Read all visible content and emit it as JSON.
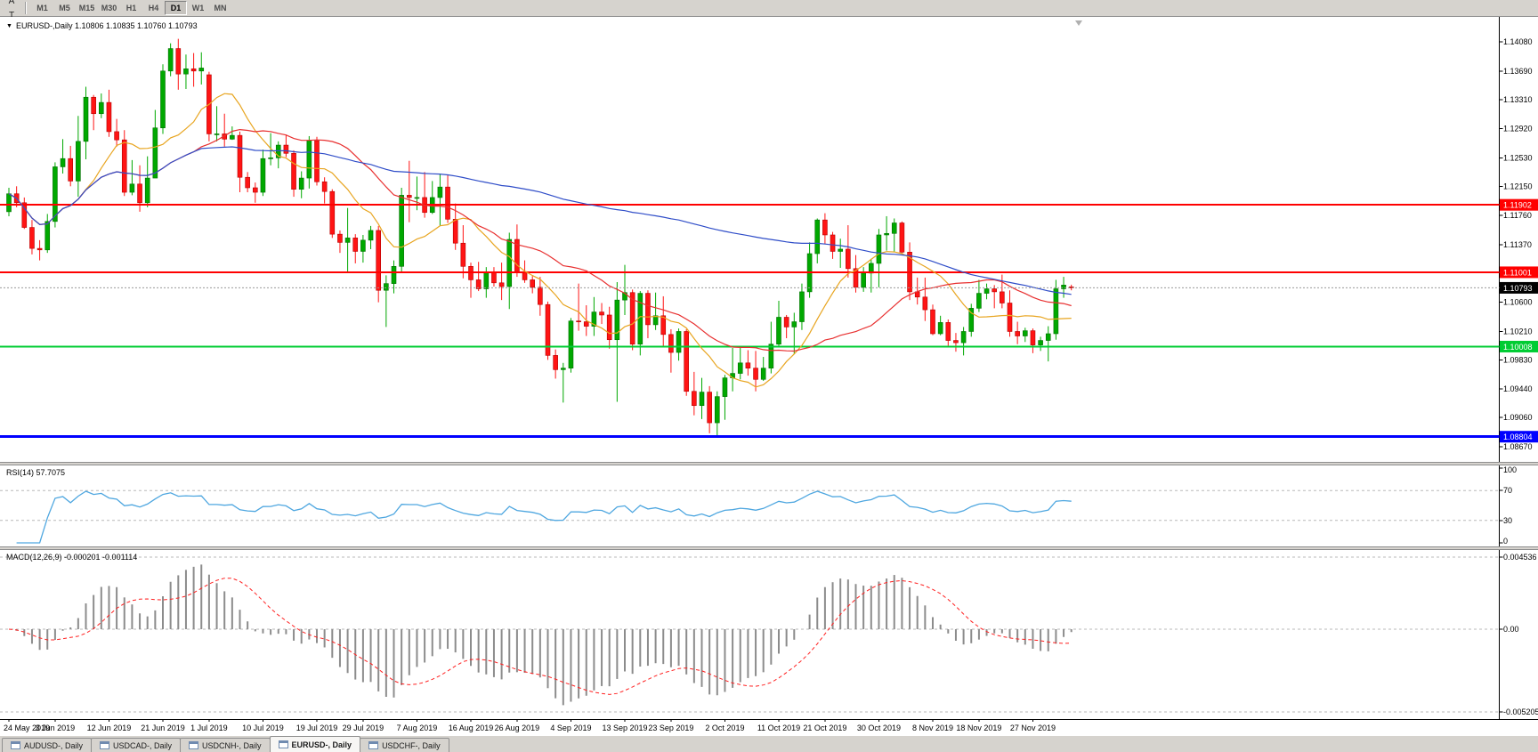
{
  "toolbar": {
    "tools": [
      {
        "name": "cursor-tool",
        "glyph": "↖"
      },
      {
        "name": "text-label-tool",
        "glyph": "A"
      },
      {
        "name": "type-tool",
        "glyph": "T"
      },
      {
        "name": "drawing-tools-dropdown",
        "glyph": "~",
        "dropdown": "▾"
      }
    ],
    "timeframes": [
      {
        "label": "M1"
      },
      {
        "label": "M5"
      },
      {
        "label": "M15"
      },
      {
        "label": "M30"
      },
      {
        "label": "H1"
      },
      {
        "label": "H4"
      },
      {
        "label": "D1",
        "active": true
      },
      {
        "label": "W1"
      },
      {
        "label": "MN"
      }
    ]
  },
  "chart": {
    "menu_icon": "▼",
    "title_line": "EURUSD-,Daily 1.10806 1.10835 1.10760 1.10793"
  },
  "chart_data": {
    "type": "candlestick",
    "symbol": "EURUSD-",
    "timeframe": "Daily",
    "ohlc_display": {
      "open": "1.10806",
      "high": "1.10835",
      "low": "1.10760",
      "close": "1.10793"
    },
    "y_axis": {
      "ticks": [
        "1.14080",
        "1.13690",
        "1.13310",
        "1.12920",
        "1.12530",
        "1.12150",
        "1.11760",
        "1.11370",
        "1.10600",
        "1.10210",
        "1.09830",
        "1.09440",
        "1.09060",
        "1.08670"
      ]
    },
    "x_labels": [
      {
        "i": 0,
        "label": "24 May 2019"
      },
      {
        "i": 6,
        "label": "3 Jun 2019"
      },
      {
        "i": 13,
        "label": "12 Jun 2019"
      },
      {
        "i": 20,
        "label": "21 Jun 2019"
      },
      {
        "i": 26,
        "label": "1 Jul 2019"
      },
      {
        "i": 33,
        "label": "10 Jul 2019"
      },
      {
        "i": 40,
        "label": "19 Jul 2019"
      },
      {
        "i": 46,
        "label": "29 Jul 2019"
      },
      {
        "i": 53,
        "label": "7 Aug 2019"
      },
      {
        "i": 60,
        "label": "16 Aug 2019"
      },
      {
        "i": 66,
        "label": "26 Aug 2019"
      },
      {
        "i": 73,
        "label": "4 Sep 2019"
      },
      {
        "i": 80,
        "label": "13 Sep 2019"
      },
      {
        "i": 86,
        "label": "23 Sep 2019"
      },
      {
        "i": 93,
        "label": "2 Oct 2019"
      },
      {
        "i": 100,
        "label": "11 Oct 2019"
      },
      {
        "i": 106,
        "label": "21 Oct 2019"
      },
      {
        "i": 113,
        "label": "30 Oct 2019"
      },
      {
        "i": 120,
        "label": "8 Nov 2019"
      },
      {
        "i": 126,
        "label": "18 Nov 2019"
      },
      {
        "i": 133,
        "label": "27 Nov 2019"
      }
    ],
    "levels": [
      {
        "name": "resistance-line-upper",
        "value": 1.11902,
        "label": "1.11902",
        "color": "#FF0000",
        "width": 2
      },
      {
        "name": "resistance-line-lower",
        "value": 1.11001,
        "label": "1.11001",
        "color": "#FF0000",
        "width": 2
      },
      {
        "name": "support-line-green",
        "value": 1.10008,
        "label": "1.10008",
        "color": "#00CC33",
        "width": 2
      },
      {
        "name": "support-line-blue",
        "value": 1.08804,
        "label": "1.08804",
        "color": "#0000FF",
        "width": 3
      }
    ],
    "current_price": {
      "value": 1.10793,
      "label": "1.10793",
      "bg": "#000000"
    },
    "moving_averages": [
      {
        "period": 10,
        "color": "#E8A520"
      },
      {
        "period": 25,
        "color": "#E83030"
      },
      {
        "period": 100,
        "color": "#2F4DC8"
      }
    ],
    "colors": {
      "up": "#00A800",
      "up_edge": "#007000",
      "down": "#FF1414",
      "down_edge": "#B40000",
      "background": "#FFFFFF"
    },
    "candles": [
      [
        1.1181,
        1.1213,
        1.1175,
        1.1205
      ],
      [
        1.1205,
        1.1215,
        1.1187,
        1.1193
      ],
      [
        1.1193,
        1.12,
        1.1158,
        1.116
      ],
      [
        1.116,
        1.117,
        1.1124,
        1.1132
      ],
      [
        1.1132,
        1.1143,
        1.1116,
        1.113
      ],
      [
        1.113,
        1.1178,
        1.1126,
        1.1168
      ],
      [
        1.1168,
        1.1247,
        1.116,
        1.1241
      ],
      [
        1.1241,
        1.1278,
        1.1232,
        1.1252
      ],
      [
        1.1252,
        1.1269,
        1.1215,
        1.1222
      ],
      [
        1.1222,
        1.1309,
        1.1201,
        1.1275
      ],
      [
        1.1275,
        1.1348,
        1.1251,
        1.1334
      ],
      [
        1.1334,
        1.1337,
        1.129,
        1.1312
      ],
      [
        1.1312,
        1.1339,
        1.1306,
        1.1327
      ],
      [
        1.1327,
        1.1344,
        1.1281,
        1.1288
      ],
      [
        1.1288,
        1.1305,
        1.1268,
        1.1277
      ],
      [
        1.1277,
        1.129,
        1.1202,
        1.1207
      ],
      [
        1.1207,
        1.125,
        1.1203,
        1.1218
      ],
      [
        1.1218,
        1.1243,
        1.1181,
        1.1193
      ],
      [
        1.1193,
        1.1255,
        1.1187,
        1.1226
      ],
      [
        1.1226,
        1.1317,
        1.1226,
        1.1293
      ],
      [
        1.1293,
        1.1378,
        1.1285,
        1.1369
      ],
      [
        1.1369,
        1.1406,
        1.1362,
        1.1399
      ],
      [
        1.1399,
        1.1412,
        1.1344,
        1.1365
      ],
      [
        1.1365,
        1.1391,
        1.1345,
        1.1372
      ],
      [
        1.1372,
        1.1393,
        1.1348,
        1.1369
      ],
      [
        1.1369,
        1.1394,
        1.1351,
        1.1373
      ],
      [
        1.1364,
        1.1368,
        1.1275,
        1.1285
      ],
      [
        1.1285,
        1.1322,
        1.1275,
        1.1285
      ],
      [
        1.1285,
        1.1312,
        1.1268,
        1.1278
      ],
      [
        1.1278,
        1.1295,
        1.1277,
        1.1283
      ],
      [
        1.1283,
        1.1288,
        1.1207,
        1.1227
      ],
      [
        1.1227,
        1.1234,
        1.1207,
        1.1213
      ],
      [
        1.1213,
        1.122,
        1.1193,
        1.1207
      ],
      [
        1.1207,
        1.1264,
        1.1202,
        1.1252
      ],
      [
        1.1252,
        1.1286,
        1.1243,
        1.1253
      ],
      [
        1.1253,
        1.1275,
        1.1239,
        1.127
      ],
      [
        1.127,
        1.1284,
        1.1254,
        1.1259
      ],
      [
        1.1259,
        1.1263,
        1.1201,
        1.1211
      ],
      [
        1.1211,
        1.1235,
        1.1199,
        1.1226
      ],
      [
        1.1226,
        1.1282,
        1.1212,
        1.1276
      ],
      [
        1.1276,
        1.1281,
        1.1216,
        1.1221
      ],
      [
        1.1221,
        1.1227,
        1.1192,
        1.1208
      ],
      [
        1.1208,
        1.1211,
        1.1146,
        1.1151
      ],
      [
        1.1151,
        1.1156,
        1.1126,
        1.114
      ],
      [
        1.114,
        1.1186,
        1.1101,
        1.1146
      ],
      [
        1.1146,
        1.1151,
        1.1112,
        1.1128
      ],
      [
        1.1128,
        1.115,
        1.1113,
        1.1143
      ],
      [
        1.1143,
        1.1162,
        1.1131,
        1.1156
      ],
      [
        1.1156,
        1.1162,
        1.106,
        1.1076
      ],
      [
        1.1076,
        1.1096,
        1.1027,
        1.1085
      ],
      [
        1.1085,
        1.1116,
        1.1072,
        1.1108
      ],
      [
        1.1108,
        1.1213,
        1.1101,
        1.1203
      ],
      [
        1.1203,
        1.1249,
        1.1167,
        1.12
      ],
      [
        1.12,
        1.1228,
        1.1183,
        1.12
      ],
      [
        1.12,
        1.1234,
        1.1173,
        1.118
      ],
      [
        1.118,
        1.1222,
        1.1178,
        1.12
      ],
      [
        1.12,
        1.1231,
        1.1162,
        1.1214
      ],
      [
        1.1214,
        1.123,
        1.1166,
        1.1171
      ],
      [
        1.1171,
        1.1192,
        1.113,
        1.1139
      ],
      [
        1.1139,
        1.1163,
        1.1092,
        1.1108
      ],
      [
        1.1108,
        1.1113,
        1.1066,
        1.109
      ],
      [
        1.109,
        1.1114,
        1.1075,
        1.1078
      ],
      [
        1.1078,
        1.1107,
        1.1066,
        1.11
      ],
      [
        1.11,
        1.1107,
        1.1081,
        1.1086
      ],
      [
        1.1086,
        1.1113,
        1.1063,
        1.1081
      ],
      [
        1.1081,
        1.1153,
        1.1051,
        1.1144
      ],
      [
        1.1144,
        1.1164,
        1.1094,
        1.1101
      ],
      [
        1.1101,
        1.1116,
        1.1086,
        1.109
      ],
      [
        1.109,
        1.1095,
        1.1072,
        1.108
      ],
      [
        1.108,
        1.1094,
        1.1042,
        1.1057
      ],
      [
        1.1057,
        1.1061,
        1.0983,
        1.0989
      ],
      [
        1.0989,
        1.0997,
        1.0958,
        1.097
      ],
      [
        1.097,
        1.0979,
        1.0926,
        1.0972
      ],
      [
        1.0972,
        1.1039,
        1.0966,
        1.1035
      ],
      [
        1.1035,
        1.1085,
        1.1022,
        1.1034
      ],
      [
        1.1034,
        1.1056,
        1.1015,
        1.1028
      ],
      [
        1.1028,
        1.1067,
        1.1015,
        1.1047
      ],
      [
        1.1047,
        1.1059,
        1.1031,
        1.1043
      ],
      [
        1.1043,
        1.1054,
        1.0998,
        1.101
      ],
      [
        1.101,
        1.1087,
        1.0927,
        1.1063
      ],
      [
        1.1063,
        1.111,
        1.1043,
        1.1073
      ],
      [
        1.1073,
        1.1077,
        1.0996,
        1.1004
      ],
      [
        1.1004,
        1.1075,
        1.0989,
        1.1072
      ],
      [
        1.1072,
        1.1076,
        1.1012,
        1.103
      ],
      [
        1.103,
        1.1073,
        1.1023,
        1.1042
      ],
      [
        1.1042,
        1.1068,
        1.1,
        1.1017
      ],
      [
        1.1017,
        1.1024,
        1.0966,
        1.0993
      ],
      [
        1.0993,
        1.1025,
        1.0982,
        1.1021
      ],
      [
        1.1021,
        1.1024,
        1.0935,
        1.0941
      ],
      [
        1.0941,
        1.0967,
        1.0909,
        1.0922
      ],
      [
        1.0922,
        1.0959,
        1.0904,
        1.094
      ],
      [
        1.094,
        1.0948,
        1.0885,
        1.0899
      ],
      [
        1.0899,
        1.0941,
        1.0879,
        1.0934
      ],
      [
        1.0934,
        1.0963,
        1.0903,
        1.0959
      ],
      [
        1.0959,
        1.0999,
        1.0941,
        1.0965
      ],
      [
        1.0965,
        1.0999,
        1.0957,
        1.0979
      ],
      [
        1.0979,
        1.0996,
        1.0962,
        1.0972
      ],
      [
        1.0972,
        1.0995,
        1.0941,
        1.0957
      ],
      [
        1.0957,
        1.0987,
        1.0955,
        1.0972
      ],
      [
        1.0972,
        1.1034,
        1.0965,
        1.1004
      ],
      [
        1.1004,
        1.1062,
        1.1002,
        1.104
      ],
      [
        1.104,
        1.1043,
        1.1012,
        1.1027
      ],
      [
        1.1027,
        1.1046,
        1.0991,
        1.1034
      ],
      [
        1.1034,
        1.1085,
        1.1023,
        1.1074
      ],
      [
        1.1074,
        1.114,
        1.1066,
        1.1125
      ],
      [
        1.1125,
        1.1172,
        1.1112,
        1.117
      ],
      [
        1.117,
        1.1179,
        1.1138,
        1.115
      ],
      [
        1.115,
        1.1154,
        1.1118,
        1.1128
      ],
      [
        1.1128,
        1.1145,
        1.1106,
        1.1131
      ],
      [
        1.1131,
        1.1163,
        1.1093,
        1.1105
      ],
      [
        1.1105,
        1.1123,
        1.1073,
        1.108
      ],
      [
        1.108,
        1.1107,
        1.1074,
        1.1099
      ],
      [
        1.1099,
        1.1118,
        1.1073,
        1.1112
      ],
      [
        1.1112,
        1.1158,
        1.108,
        1.115
      ],
      [
        1.115,
        1.1175,
        1.1129,
        1.1152
      ],
      [
        1.1152,
        1.1172,
        1.1128,
        1.1166
      ],
      [
        1.1166,
        1.1168,
        1.1125,
        1.1127
      ],
      [
        1.1127,
        1.114,
        1.1063,
        1.1074
      ],
      [
        1.1074,
        1.1093,
        1.1057,
        1.1067
      ],
      [
        1.1067,
        1.1093,
        1.1035,
        1.105
      ],
      [
        1.105,
        1.1057,
        1.1016,
        1.1018
      ],
      [
        1.1018,
        1.1042,
        1.1016,
        1.1033
      ],
      [
        1.1033,
        1.1037,
        1.1002,
        1.1009
      ],
      [
        1.1009,
        1.1019,
        1.0994,
        1.1006
      ],
      [
        1.1006,
        1.1027,
        1.0989,
        1.1021
      ],
      [
        1.1021,
        1.1058,
        1.1014,
        1.1052
      ],
      [
        1.1052,
        1.109,
        1.1047,
        1.1072
      ],
      [
        1.1072,
        1.1085,
        1.1064,
        1.1078
      ],
      [
        1.1078,
        1.1083,
        1.1052,
        1.1074
      ],
      [
        1.1074,
        1.1097,
        1.1052,
        1.1059
      ],
      [
        1.1059,
        1.1076,
        1.1014,
        1.1021
      ],
      [
        1.1021,
        1.1034,
        1.1004,
        1.1015
      ],
      [
        1.1015,
        1.1026,
        1.1007,
        1.1022
      ],
      [
        1.1022,
        1.1025,
        1.0992,
        1.1003
      ],
      [
        1.1003,
        1.1014,
        1.0995,
        1.1009
      ],
      [
        1.1009,
        1.1028,
        1.0981,
        1.1018
      ],
      [
        1.1018,
        1.109,
        1.101,
        1.1078
      ],
      [
        1.1078,
        1.1094,
        1.1066,
        1.1083
      ],
      [
        1.10806,
        1.10835,
        1.1076,
        1.10793
      ]
    ],
    "indicators": {
      "rsi": {
        "label": "RSI(14) 57.7075",
        "period": 14,
        "value": 57.7075,
        "color": "#4FA7E0",
        "levels": [
          "100",
          "70",
          "30",
          "0"
        ],
        "dashed_levels": [
          70,
          30
        ]
      },
      "macd": {
        "label": "MACD(12,26,9) -0.000201 -0.001114",
        "fast": 12,
        "slow": 26,
        "signal_period": 9,
        "macd_value": -0.000201,
        "signal_value": -0.001114,
        "scale": [
          "0.004536",
          "0.00",
          "-0.005205"
        ],
        "histogram_color": "#8C8C8C",
        "signal_color": "#FF2020"
      }
    }
  },
  "tabs": [
    {
      "label": "AUDUSD-, Daily"
    },
    {
      "label": "USDCAD-, Daily"
    },
    {
      "label": "USDCNH-, Daily"
    },
    {
      "label": "EURUSD-, Daily",
      "active": true
    },
    {
      "label": "USDCHF-, Daily"
    }
  ]
}
